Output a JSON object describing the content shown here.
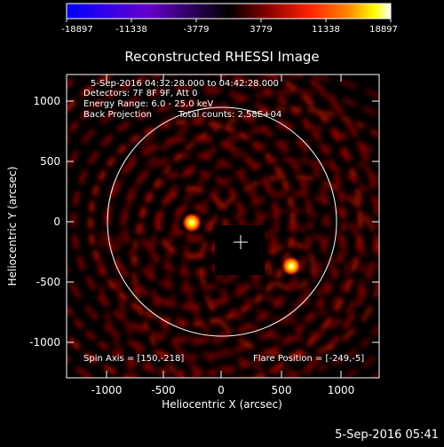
{
  "colorbar": {
    "ticks": [
      "-18897",
      "-11338",
      "-3779",
      "3779",
      "11338",
      "18897"
    ],
    "colors": [
      "#0000ff",
      "#6600cc",
      "#000000",
      "#880000",
      "#ff2200",
      "#ff8800",
      "#ffff00",
      "#ffffff"
    ]
  },
  "title": "Reconstructed RHESSI Image",
  "info": {
    "time_range": "5-Sep-2016 04:32:28.000 to 04:42:28.000",
    "detectors": "Detectors: 7F 8F 9F, Att 0",
    "energy": "Energy Range: 6.0 - 25.0 keV",
    "method": "Back Projection",
    "counts": "Total counts: 2.58E+04"
  },
  "spin_axis": "Spin Axis = [150,-218]",
  "flare_position": "Flare Position = [-249,-5]",
  "axes": {
    "xlabel": "Heliocentric X (arcsec)",
    "ylabel": "Heliocentric Y (arcsec)",
    "xticks": [
      "-1000",
      "-500",
      "0",
      "500",
      "1000"
    ],
    "yticks": [
      "1000",
      "500",
      "0",
      "-500",
      "-1000"
    ]
  },
  "timestamp": "5-Sep-2016 05:41"
}
